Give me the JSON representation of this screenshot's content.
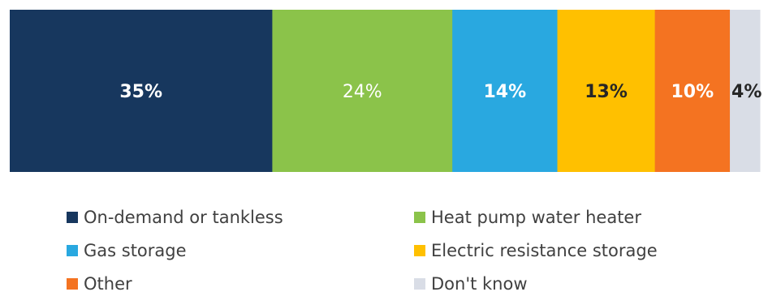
{
  "chart_data": {
    "type": "bar",
    "orientation": "horizontal-stacked-100",
    "title": "",
    "xlabel": "",
    "ylabel": "",
    "series": [
      {
        "name": "On-demand or tankless",
        "value": 35,
        "label": "35%",
        "color": "#17375e",
        "label_color": "#ffffff",
        "label_bold": true
      },
      {
        "name": "Heat pump water heater",
        "value": 24,
        "label": "24%",
        "color": "#8bc34a",
        "label_color": "#ffffff",
        "label_bold": false
      },
      {
        "name": "Gas storage",
        "value": 14,
        "label": "14%",
        "color": "#29a8e0",
        "label_color": "#ffffff",
        "label_bold": true
      },
      {
        "name": "Electric resistance storage",
        "value": 13,
        "label": "13%",
        "color": "#ffc000",
        "label_color": "#262626",
        "label_bold": true
      },
      {
        "name": "Other",
        "value": 10,
        "label": "10%",
        "color": "#f47321",
        "label_color": "#ffffff",
        "label_bold": true
      },
      {
        "name": "Don't know",
        "value": 4,
        "label": "4%",
        "color": "#d9dde6",
        "label_color": "#262626",
        "label_bold": true
      }
    ],
    "legend": {
      "placement": "bottom",
      "columns": 2
    }
  }
}
